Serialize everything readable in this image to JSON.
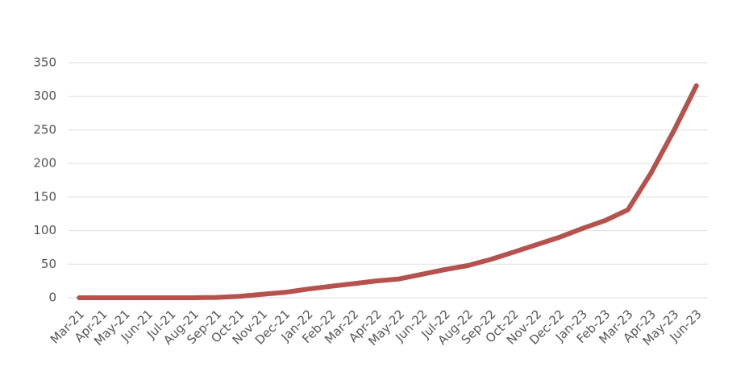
{
  "chart_data": {
    "type": "line",
    "categories": [
      "Mar-21",
      "Apr-21",
      "May-21",
      "Jun-21",
      "Jul-21",
      "Aug-21",
      "Sep-21",
      "Oct-21",
      "Nov-21",
      "Dec-21",
      "Jan-22",
      "Feb-22",
      "Mar-22",
      "Apr-22",
      "May-22",
      "Jun-22",
      "Jul-22",
      "Aug-22",
      "Sep-22",
      "Oct-22",
      "Nov-22",
      "Dec-22",
      "Jan-23",
      "Feb-23",
      "Mar-23",
      "Apr-23",
      "May-23",
      "Jun-23"
    ],
    "values": [
      0,
      0,
      0,
      0,
      0,
      0,
      0.5,
      2,
      5,
      8,
      13,
      17,
      21,
      25,
      28,
      35,
      42,
      48,
      57,
      68,
      79,
      90,
      103,
      115,
      131,
      185,
      248,
      316
    ],
    "color": "#b5524e",
    "ylim": [
      0,
      350
    ],
    "yticks": [
      0,
      50,
      100,
      150,
      200,
      250,
      300,
      350
    ],
    "grid": true
  }
}
